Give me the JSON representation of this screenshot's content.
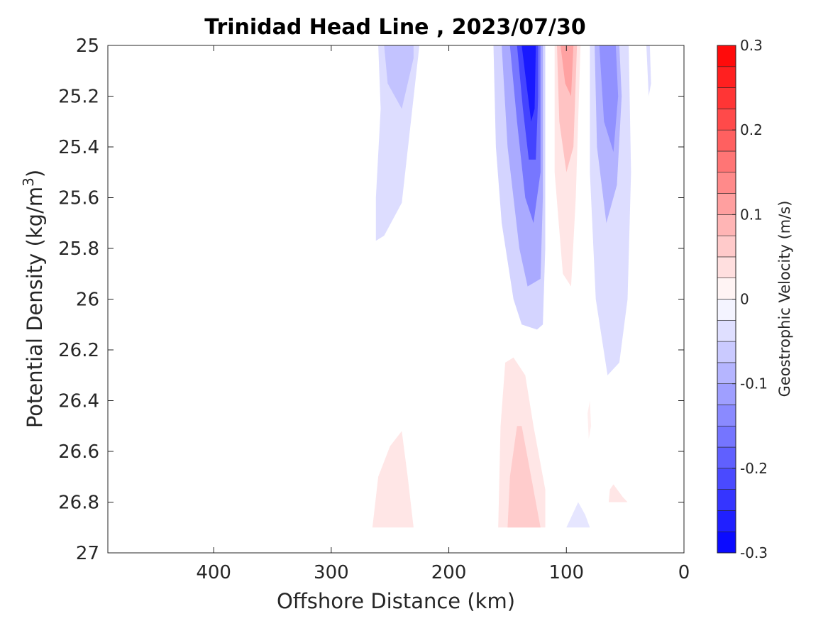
{
  "chart_data": {
    "type": "heatmap",
    "title": "Trinidad Head Line , 2023/07/30",
    "xlabel": "Offshore Distance (km)",
    "ylabel_main": "Potential Density (kg/m",
    "ylabel_sup": "3",
    "ylabel_tail": ")",
    "xlim": [
      490,
      0
    ],
    "x_reversed": true,
    "ylim": [
      25,
      27
    ],
    "y_reversed": true,
    "x_ticks": [
      400,
      300,
      200,
      100,
      0
    ],
    "x_tick_labels": [
      "400",
      "300",
      "200",
      "100",
      "0"
    ],
    "y_ticks": [
      25,
      25.2,
      25.4,
      25.6,
      25.8,
      26,
      26.2,
      26.4,
      26.6,
      26.8,
      27
    ],
    "y_tick_labels": [
      "25",
      "25.2",
      "25.4",
      "25.6",
      "25.8",
      "26",
      "26.2",
      "26.4",
      "26.6",
      "26.8",
      "27"
    ],
    "colorbar": {
      "label": "Geostrophic Velocity (m/s)",
      "range": [
        -0.3,
        0.3
      ],
      "levels": [
        -0.3,
        -0.275,
        -0.25,
        -0.225,
        -0.2,
        -0.175,
        -0.15,
        -0.125,
        -0.1,
        -0.075,
        -0.05,
        -0.025,
        0,
        0.025,
        0.05,
        0.075,
        0.1,
        0.125,
        0.15,
        0.175,
        0.2,
        0.225,
        0.25,
        0.275,
        0.3
      ],
      "ticks": [
        0.3,
        0.2,
        0.1,
        0,
        -0.1,
        -0.2,
        -0.3
      ],
      "tick_labels": [
        "0.3",
        "0.2",
        "0.1",
        "0",
        "-0.1",
        "-0.2",
        "-0.3"
      ],
      "colormap": "blue-white-red",
      "negative_color": "#0000ff",
      "positive_color": "#ff0000"
    },
    "features": [
      {
        "sign": "negative",
        "v": -0.04,
        "pts": [
          [
            260,
            25
          ],
          [
            258,
            25.25
          ],
          [
            262,
            25.6
          ],
          [
            262,
            25.77
          ],
          [
            255,
            25.75
          ],
          [
            240,
            25.62
          ],
          [
            225,
            25
          ],
          [
            232,
            25
          ]
        ]
      },
      {
        "sign": "negative",
        "v": -0.07,
        "pts": [
          [
            255,
            25
          ],
          [
            252,
            25.15
          ],
          [
            240,
            25.25
          ],
          [
            230,
            25.05
          ],
          [
            230,
            25
          ]
        ]
      },
      {
        "sign": "negative",
        "v": -0.05,
        "pts": [
          [
            162,
            25
          ],
          [
            160,
            25.4
          ],
          [
            155,
            25.7
          ],
          [
            145,
            26
          ],
          [
            138,
            26.1
          ],
          [
            125,
            26.12
          ],
          [
            120,
            26.1
          ],
          [
            118,
            25.8
          ],
          [
            118,
            25
          ]
        ]
      },
      {
        "sign": "negative",
        "v": -0.1,
        "pts": [
          [
            155,
            25
          ],
          [
            150,
            25.4
          ],
          [
            140,
            25.8
          ],
          [
            133,
            25.95
          ],
          [
            122,
            25.92
          ],
          [
            120,
            25.6
          ],
          [
            120,
            25
          ]
        ]
      },
      {
        "sign": "negative",
        "v": -0.16,
        "pts": [
          [
            148,
            25
          ],
          [
            142,
            25.3
          ],
          [
            135,
            25.6
          ],
          [
            128,
            25.7
          ],
          [
            122,
            25.5
          ],
          [
            122,
            25
          ]
        ]
      },
      {
        "sign": "negative",
        "v": -0.22,
        "pts": [
          [
            142,
            25
          ],
          [
            137,
            25.25
          ],
          [
            132,
            25.45
          ],
          [
            126,
            25.45
          ],
          [
            124,
            25.2
          ],
          [
            124,
            25
          ]
        ]
      },
      {
        "sign": "negative",
        "v": -0.27,
        "pts": [
          [
            138,
            25
          ],
          [
            134,
            25.15
          ],
          [
            130,
            25.3
          ],
          [
            127,
            25.25
          ],
          [
            126,
            25
          ]
        ]
      },
      {
        "sign": "negative",
        "v": -0.04,
        "pts": [
          [
            80,
            25
          ],
          [
            80,
            25.5
          ],
          [
            75,
            26
          ],
          [
            65,
            26.3
          ],
          [
            55,
            26.25
          ],
          [
            48,
            26.0
          ],
          [
            45,
            25.5
          ],
          [
            47,
            25
          ]
        ]
      },
      {
        "sign": "negative",
        "v": -0.09,
        "pts": [
          [
            76,
            25
          ],
          [
            74,
            25.4
          ],
          [
            66,
            25.7
          ],
          [
            57,
            25.55
          ],
          [
            53,
            25.2
          ],
          [
            55,
            25
          ]
        ]
      },
      {
        "sign": "negative",
        "v": -0.13,
        "pts": [
          [
            72,
            25
          ],
          [
            68,
            25.3
          ],
          [
            60,
            25.42
          ],
          [
            56,
            25.2
          ],
          [
            58,
            25
          ]
        ]
      },
      {
        "sign": "negative",
        "v": -0.04,
        "pts": [
          [
            32,
            25
          ],
          [
            30,
            25.2
          ],
          [
            28,
            25.15
          ],
          [
            29,
            25
          ]
        ]
      },
      {
        "sign": "negative",
        "v": -0.03,
        "pts": [
          [
            100,
            26.9
          ],
          [
            95,
            26.85
          ],
          [
            90,
            26.8
          ],
          [
            84,
            26.85
          ],
          [
            80,
            26.9
          ]
        ]
      },
      {
        "sign": "positive",
        "v": 0.03,
        "pts": [
          [
            110,
            25
          ],
          [
            110,
            25.5
          ],
          [
            103,
            25.9
          ],
          [
            96,
            25.95
          ],
          [
            92,
            25.6
          ],
          [
            88,
            25
          ]
        ]
      },
      {
        "sign": "positive",
        "v": 0.07,
        "pts": [
          [
            108,
            25
          ],
          [
            106,
            25.3
          ],
          [
            100,
            25.5
          ],
          [
            94,
            25.4
          ],
          [
            91,
            25
          ]
        ]
      },
      {
        "sign": "positive",
        "v": 0.11,
        "pts": [
          [
            105,
            25
          ],
          [
            101,
            25.15
          ],
          [
            96,
            25.2
          ],
          [
            94,
            25
          ]
        ]
      },
      {
        "sign": "positive",
        "v": 0.03,
        "pts": [
          [
            158,
            26.9
          ],
          [
            156,
            26.5
          ],
          [
            152,
            26.25
          ],
          [
            145,
            26.23
          ],
          [
            135,
            26.3
          ],
          [
            128,
            26.5
          ],
          [
            118,
            26.75
          ],
          [
            118,
            26.9
          ]
        ]
      },
      {
        "sign": "positive",
        "v": 0.06,
        "pts": [
          [
            150,
            26.9
          ],
          [
            148,
            26.7
          ],
          [
            142,
            26.5
          ],
          [
            138,
            26.5
          ],
          [
            130,
            26.7
          ],
          [
            122,
            26.9
          ]
        ]
      },
      {
        "sign": "positive",
        "v": 0.03,
        "pts": [
          [
            265,
            26.9
          ],
          [
            260,
            26.7
          ],
          [
            250,
            26.58
          ],
          [
            240,
            26.52
          ],
          [
            235,
            26.7
          ],
          [
            230,
            26.9
          ]
        ]
      },
      {
        "sign": "positive",
        "v": 0.03,
        "pts": [
          [
            64,
            26.8
          ],
          [
            63,
            26.75
          ],
          [
            60,
            26.73
          ],
          [
            52,
            26.78
          ],
          [
            48,
            26.8
          ]
        ]
      },
      {
        "sign": "positive",
        "v": 0.02,
        "pts": [
          [
            82,
            26.45
          ],
          [
            80,
            26.4
          ],
          [
            79,
            26.5
          ],
          [
            81,
            26.55
          ]
        ]
      }
    ]
  }
}
